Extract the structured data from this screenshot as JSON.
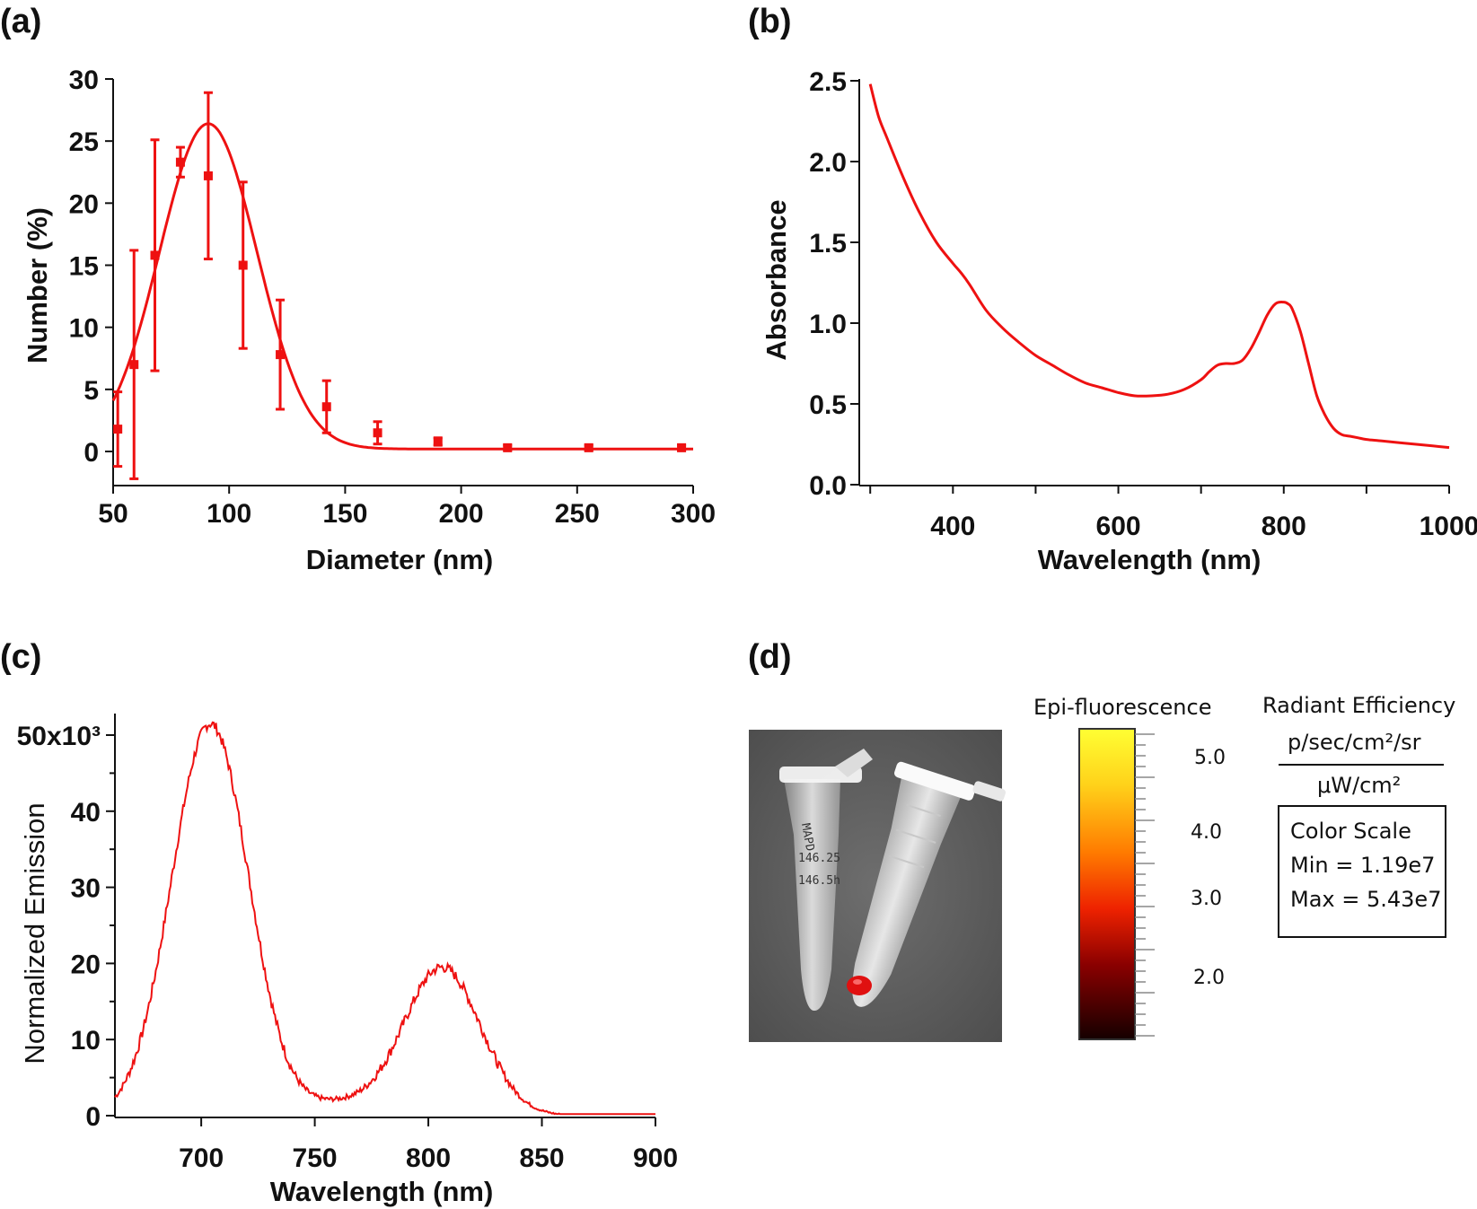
{
  "colors": {
    "line": "#ee1111",
    "axis": "#111111"
  },
  "chart_data": [
    {
      "id": "a",
      "panel_label": "(a)",
      "type": "scatter",
      "title": "",
      "xlabel": "Diameter (nm)",
      "ylabel": "Number (%)",
      "xlim": [
        50,
        300
      ],
      "ylim": [
        -3,
        30
      ],
      "xticks": [
        "50",
        "100",
        "150",
        "200",
        "250",
        "300"
      ],
      "yticks": [
        "0",
        "5",
        "10",
        "15",
        "20",
        "25",
        "30"
      ],
      "points": [
        {
          "x": 52,
          "y": 1.8,
          "err": 3.0
        },
        {
          "x": 59,
          "y": 7.0,
          "err": 9.2
        },
        {
          "x": 68,
          "y": 15.8,
          "err": 9.3
        },
        {
          "x": 79,
          "y": 23.3,
          "err": 1.2
        },
        {
          "x": 91,
          "y": 22.2,
          "err": 6.7
        },
        {
          "x": 106,
          "y": 15.0,
          "err": 6.7
        },
        {
          "x": 122,
          "y": 7.8,
          "err": 4.4
        },
        {
          "x": 142,
          "y": 3.6,
          "err": 2.1
        },
        {
          "x": 164,
          "y": 1.5,
          "err": 0.9
        },
        {
          "x": 190,
          "y": 0.8,
          "err": 0.3
        },
        {
          "x": 220,
          "y": 0.3,
          "err": 0.2
        },
        {
          "x": 255,
          "y": 0.3,
          "err": 0.2
        },
        {
          "x": 295,
          "y": 0.3,
          "err": 0.2
        }
      ],
      "fit": {
        "type": "gaussian",
        "amplitude": 26.2,
        "center": 91,
        "sigma": 21,
        "offset": 0.2
      }
    },
    {
      "id": "b",
      "panel_label": "(b)",
      "type": "line",
      "title": "",
      "xlabel": "Wavelength (nm)",
      "ylabel": "Absorbance",
      "xlim": [
        290,
        1000
      ],
      "ylim": [
        0,
        2.5
      ],
      "xticks": [
        "400",
        "600",
        "800",
        "1000"
      ],
      "yticks": [
        "0.0",
        "0.5",
        "1.0",
        "1.5",
        "2.0",
        "2.5"
      ],
      "x": [
        300,
        310,
        320,
        340,
        360,
        380,
        400,
        410,
        420,
        440,
        460,
        480,
        500,
        520,
        540,
        560,
        580,
        600,
        620,
        640,
        660,
        680,
        700,
        710,
        720,
        730,
        740,
        750,
        760,
        770,
        780,
        790,
        800,
        805,
        810,
        820,
        830,
        840,
        850,
        860,
        870,
        880,
        890,
        900,
        920,
        940,
        960,
        980,
        1000
      ],
      "y": [
        2.48,
        2.28,
        2.15,
        1.9,
        1.68,
        1.5,
        1.37,
        1.31,
        1.24,
        1.08,
        0.97,
        0.88,
        0.8,
        0.74,
        0.68,
        0.63,
        0.6,
        0.57,
        0.55,
        0.55,
        0.56,
        0.59,
        0.65,
        0.7,
        0.74,
        0.75,
        0.75,
        0.77,
        0.84,
        0.94,
        1.05,
        1.12,
        1.13,
        1.12,
        1.09,
        0.95,
        0.75,
        0.55,
        0.43,
        0.35,
        0.31,
        0.3,
        0.29,
        0.28,
        0.27,
        0.26,
        0.25,
        0.24,
        0.23
      ]
    },
    {
      "id": "c",
      "panel_label": "(c)",
      "type": "line",
      "title": "",
      "xlabel": "Wavelength (nm)",
      "ylabel": "Normalized Emission",
      "xlim": [
        662,
        900
      ],
      "ylim": [
        0,
        53
      ],
      "xticks": [
        "700",
        "750",
        "800",
        "850",
        "900"
      ],
      "yticks": [
        "0",
        "10",
        "20",
        "30",
        "40",
        "50x10³"
      ],
      "peaks": [
        {
          "amp": 51.5,
          "center": 704,
          "sigma": 17
        },
        {
          "amp": 19.5,
          "center": 806,
          "sigma": 17
        },
        {
          "amp": 1.5,
          "center": 760,
          "sigma": 15
        }
      ],
      "noise": 0.7
    }
  ],
  "panel_d": {
    "panel_label": "(d)",
    "legend_title": "Epi-fluorescence",
    "units_title": "Radiant Efficiency",
    "units_numerator": "p/sec/cm²/sr",
    "units_denominator": "μW/cm²",
    "colorscale_box": {
      "title": "Color Scale",
      "min": "Min = 1.19e7",
      "max": "Max = 5.43e7"
    },
    "colorbar_ticks": [
      "5.0",
      "4.0",
      "3.0",
      "2.0"
    ],
    "tube_text": [
      "MAPD",
      "146.25",
      "146.5h"
    ]
  }
}
